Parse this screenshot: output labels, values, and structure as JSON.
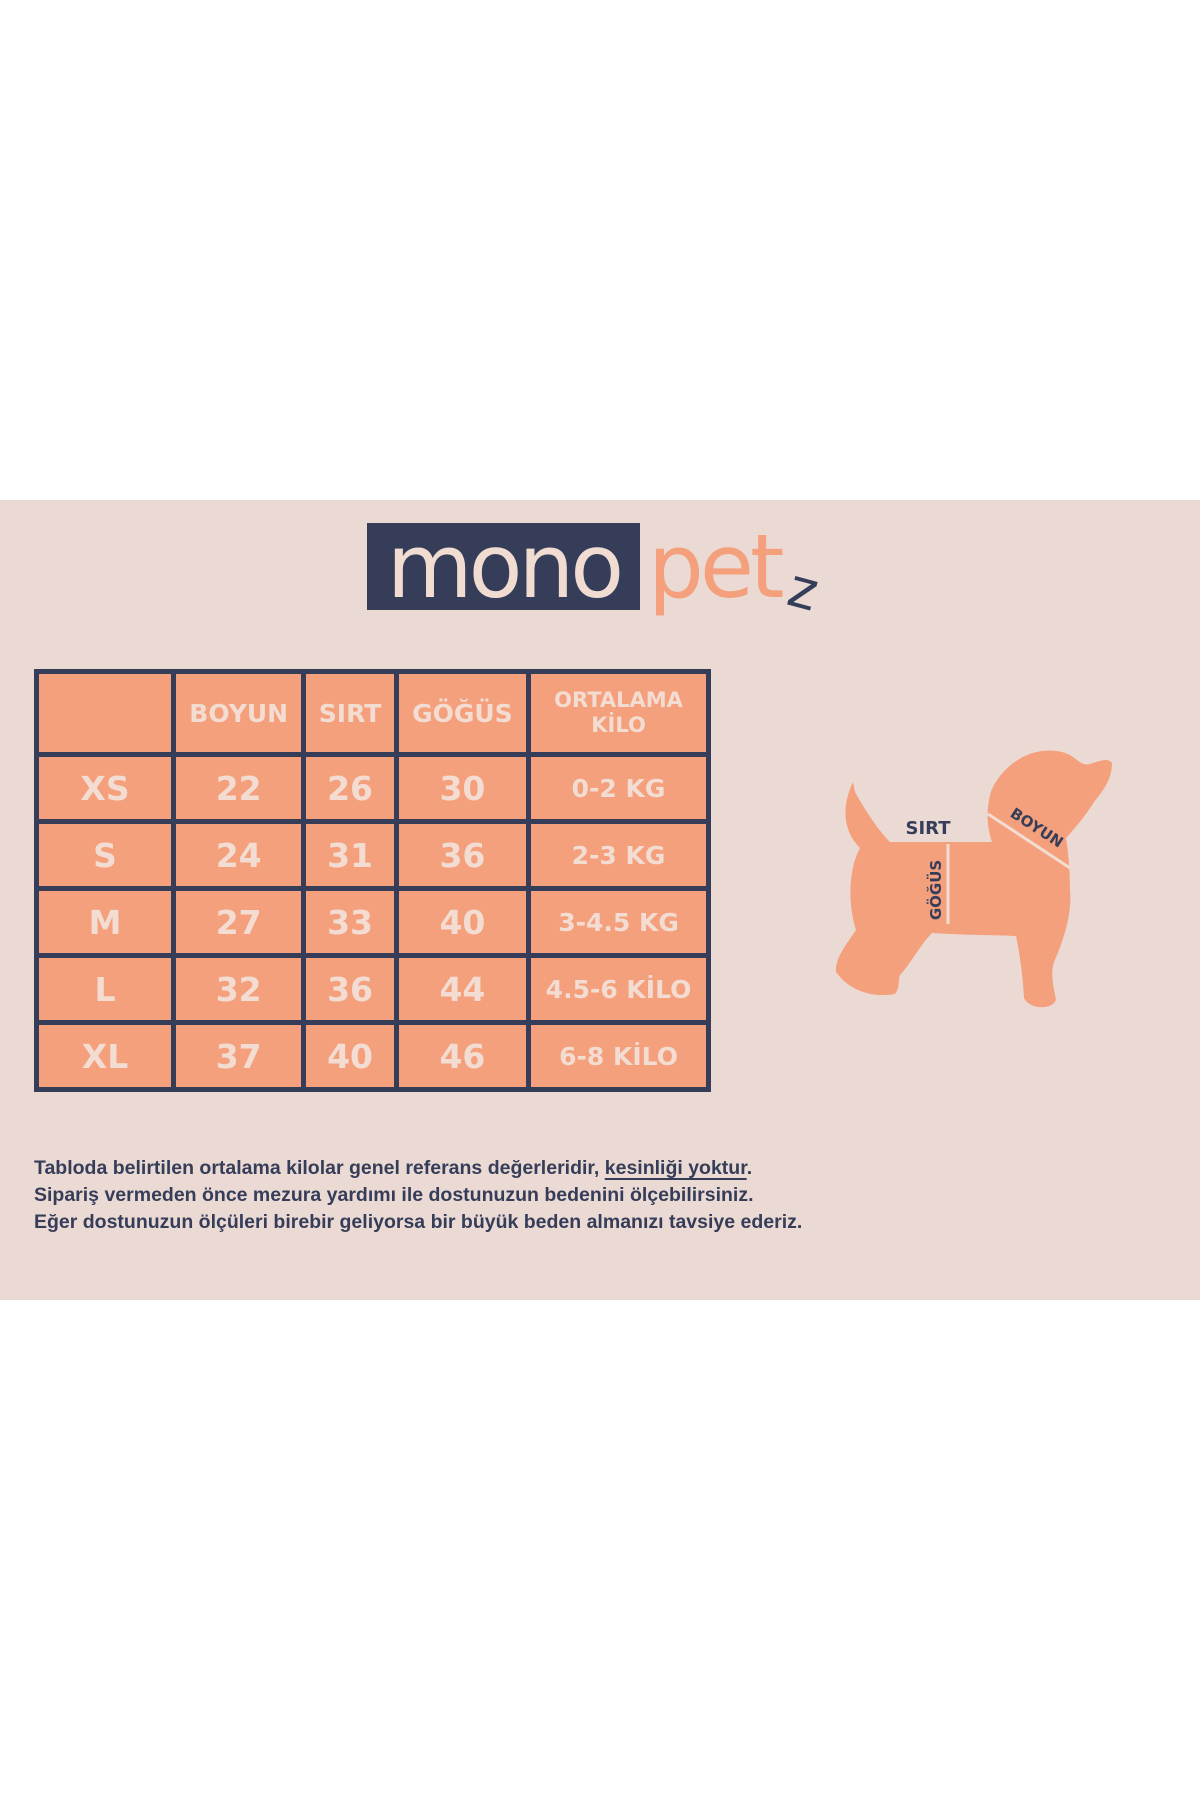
{
  "brand": {
    "logo_part1": "mono",
    "logo_part2": "pet",
    "logo_part3": "z"
  },
  "colors": {
    "background": "#ebdad4",
    "navy": "#363d59",
    "salmon": "#f4a07c",
    "light_text": "#f3dcd2"
  },
  "table": {
    "headers": [
      "",
      "BOYUN",
      "SIRT",
      "GÖĞÜS",
      "ORTALAMA KİLO"
    ],
    "header_kilo_line1": "ORTALAMA",
    "header_kilo_line2": "KİLO",
    "rows": [
      {
        "size": "XS",
        "boyun": "22",
        "sirt": "26",
        "gogus": "30",
        "kilo": "0-2 KG"
      },
      {
        "size": "S",
        "boyun": "24",
        "sirt": "31",
        "gogus": "36",
        "kilo": "2-3 KG"
      },
      {
        "size": "M",
        "boyun": "27",
        "sirt": "33",
        "gogus": "40",
        "kilo": "3-4.5 KG"
      },
      {
        "size": "L",
        "boyun": "32",
        "sirt": "36",
        "gogus": "44",
        "kilo": "4.5-6 KİLO"
      },
      {
        "size": "XL",
        "boyun": "37",
        "sirt": "40",
        "gogus": "46",
        "kilo": "6-8 KİLO"
      }
    ]
  },
  "diagram": {
    "sirt": "SIRT",
    "gogus": "GÖĞÜS",
    "boyun": "BOYUN"
  },
  "note": {
    "line1_a": "Tabloda belirtilen ortalama kilolar genel referans değerleridir, ",
    "line1_underlined": "kesinliği yoktur",
    "line1_end": ".",
    "line2": "Sipariş vermeden önce mezura yardımı ile dostunuzun bedenini ölçebilirsiniz.",
    "line3": "Eğer dostunuzun ölçüleri birebir geliyorsa bir büyük beden almanızı tavsiye ederiz."
  }
}
